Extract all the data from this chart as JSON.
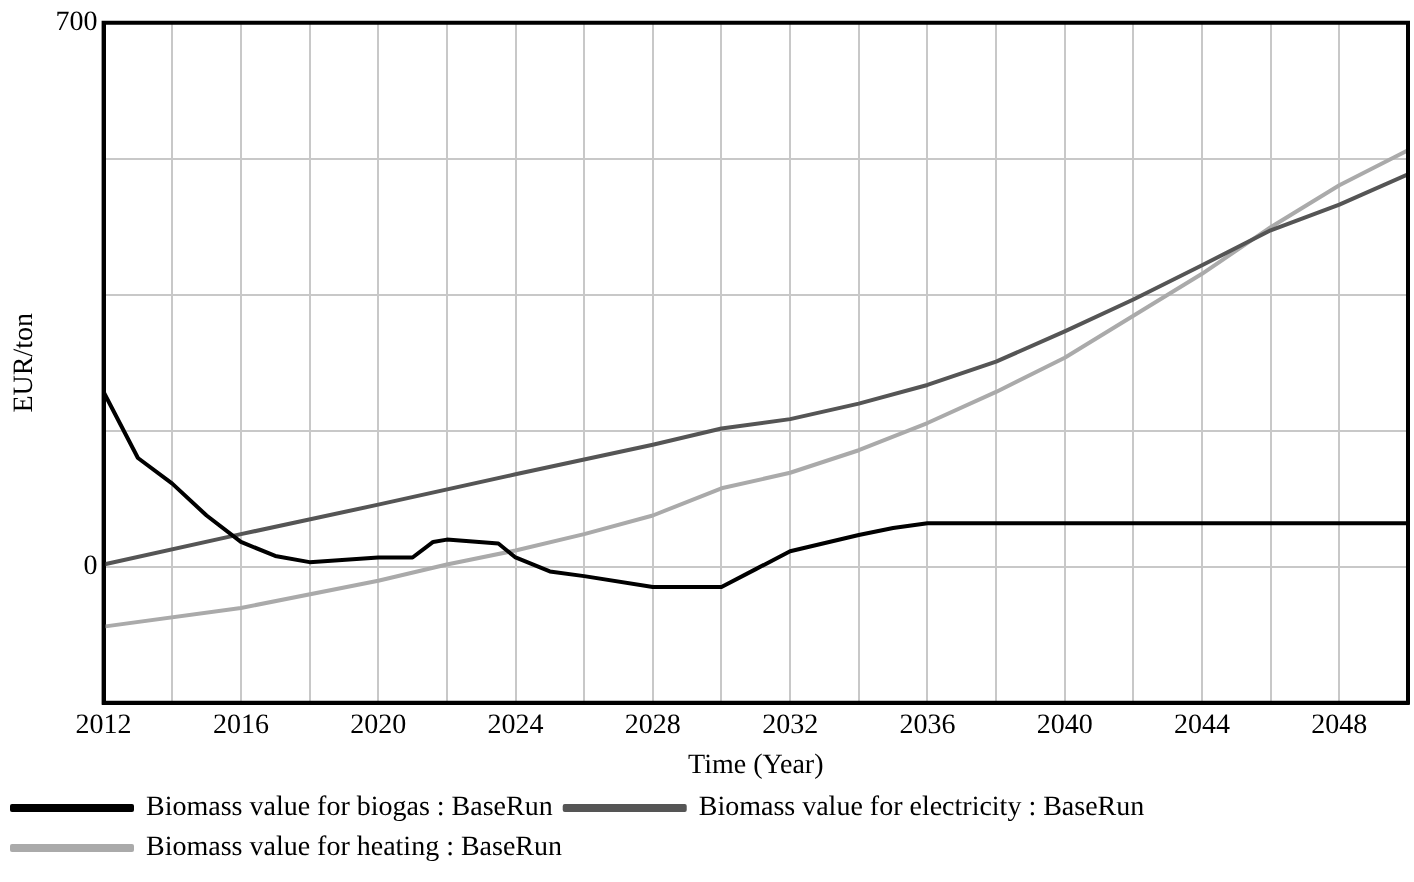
{
  "chart_data": {
    "type": "line",
    "xlabel": "Time (Year)",
    "ylabel": "EUR/ton",
    "xlim": [
      2012,
      2050
    ],
    "ylim": [
      -175,
      700
    ],
    "xticks": [
      2012,
      {
        "value": 2014,
        "label": null
      },
      2016,
      {
        "value": 2018,
        "label": null
      },
      2020,
      {
        "value": 2022,
        "label": null
      },
      2024,
      {
        "value": 2026,
        "label": null
      },
      2028,
      {
        "value": 2030,
        "label": null
      },
      2032,
      {
        "value": 2034,
        "label": null
      },
      2036,
      {
        "value": 2038,
        "label": null
      },
      2040,
      {
        "value": 2042,
        "label": null
      },
      2044,
      {
        "value": 2046,
        "label": null
      },
      2048,
      {
        "value": 2050,
        "label": null
      }
    ],
    "yticks": [
      {
        "value": -175,
        "label": null
      },
      0,
      {
        "value": 175,
        "label": null
      },
      {
        "value": 350,
        "label": null
      },
      {
        "value": 525,
        "label": null
      },
      700
    ],
    "grid": true,
    "legend": "bottom",
    "marker": "none",
    "line_style": "solid",
    "series": [
      {
        "name": "Biomass value for biogas : BaseRun",
        "color": "#000000",
        "x": [
          2012,
          2013,
          2014,
          2015,
          2016,
          2017,
          2018,
          2020,
          2021,
          2021.6,
          2022,
          2023.5,
          2024,
          2025,
          2026,
          2028,
          2030,
          2031,
          2032,
          2034,
          2035,
          2036,
          2050
        ],
        "values": [
          225,
          140,
          107,
          66,
          32,
          14,
          6,
          12,
          12,
          32,
          35,
          30,
          12,
          -6,
          -12,
          -26,
          -26,
          -3,
          20,
          41,
          50,
          56,
          56
        ]
      },
      {
        "name": "Biomass value for electricity : BaseRun",
        "color": "#555555",
        "x": [
          2012,
          2016,
          2020,
          2024,
          2028,
          2030,
          2032,
          2034,
          2036,
          2038,
          2040,
          2042,
          2044,
          2046,
          2048,
          2050
        ],
        "values": [
          3,
          42,
          80,
          119,
          157,
          178,
          190,
          210,
          234,
          264,
          303,
          344,
          388,
          433,
          466,
          505
        ]
      },
      {
        "name": "Biomass value for heating : BaseRun",
        "color": "#aaaaaa",
        "x": [
          2012,
          2016,
          2020,
          2022,
          2024,
          2026,
          2028,
          2030,
          2032,
          2034,
          2036,
          2038,
          2040,
          2042,
          2044,
          2046,
          2048,
          2050
        ],
        "values": [
          -77,
          -53,
          -18,
          3,
          21,
          42,
          66,
          101,
          121,
          150,
          185,
          225,
          269,
          323,
          377,
          437,
          491,
          536
        ]
      }
    ]
  }
}
